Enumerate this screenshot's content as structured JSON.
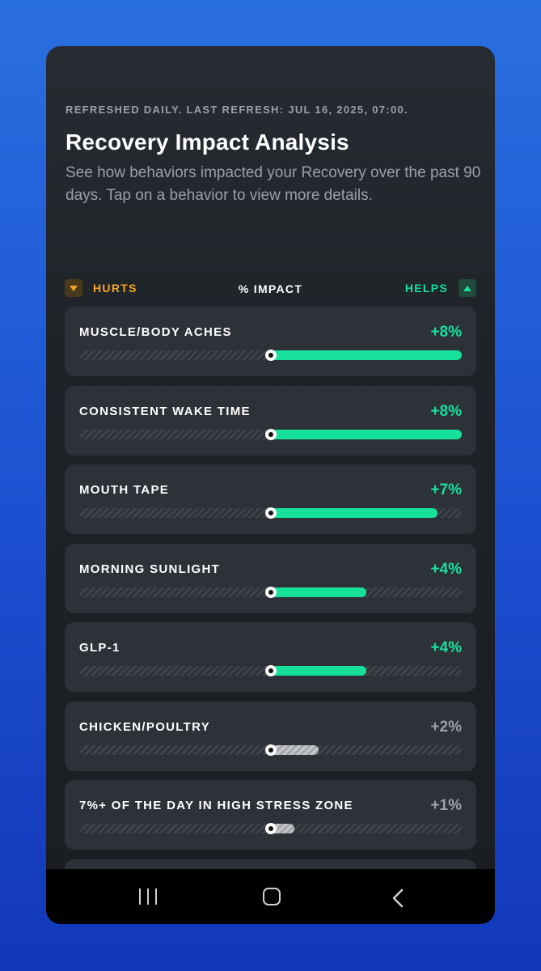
{
  "header": {
    "refresh": "REFRESHED DAILY. LAST REFRESH: JUL 16, 2025, 07:00.",
    "title": "Recovery Impact Analysis",
    "subtitle": "See how behaviors impacted your Recovery over the past 90 days. Tap on a behavior to view more details."
  },
  "legend": {
    "hurts": "HURTS",
    "impact": "% IMPACT",
    "helps": "HELPS",
    "hurts_icon": "caret-down-icon",
    "helps_icon": "caret-up-icon"
  },
  "colors": {
    "helps": "#16e09a",
    "hurts": "#f5a623",
    "neutral": "#9aa0a6",
    "card": "#2d3238"
  },
  "behaviors": [
    {
      "label": "MUSCLE/BODY ACHES",
      "value": "+8%",
      "impact": 8,
      "significant": true
    },
    {
      "label": "CONSISTENT WAKE TIME",
      "value": "+8%",
      "impact": 8,
      "significant": true
    },
    {
      "label": "MOUTH TAPE",
      "value": "+7%",
      "impact": 7,
      "significant": true
    },
    {
      "label": "MORNING SUNLIGHT",
      "value": "+4%",
      "impact": 4,
      "significant": true
    },
    {
      "label": "GLP-1",
      "value": "+4%",
      "impact": 4,
      "significant": true
    },
    {
      "label": "CHICKEN/POULTRY",
      "value": "+2%",
      "impact": 2,
      "significant": false
    },
    {
      "label": "7%+ OF THE DAY IN HIGH STRESS ZONE",
      "value": "+1%",
      "impact": 1,
      "significant": false
    }
  ],
  "scale_max": 8,
  "nav": {
    "recent_icon": "recent-apps-icon",
    "home_icon": "home-icon",
    "back_icon": "back-icon"
  }
}
